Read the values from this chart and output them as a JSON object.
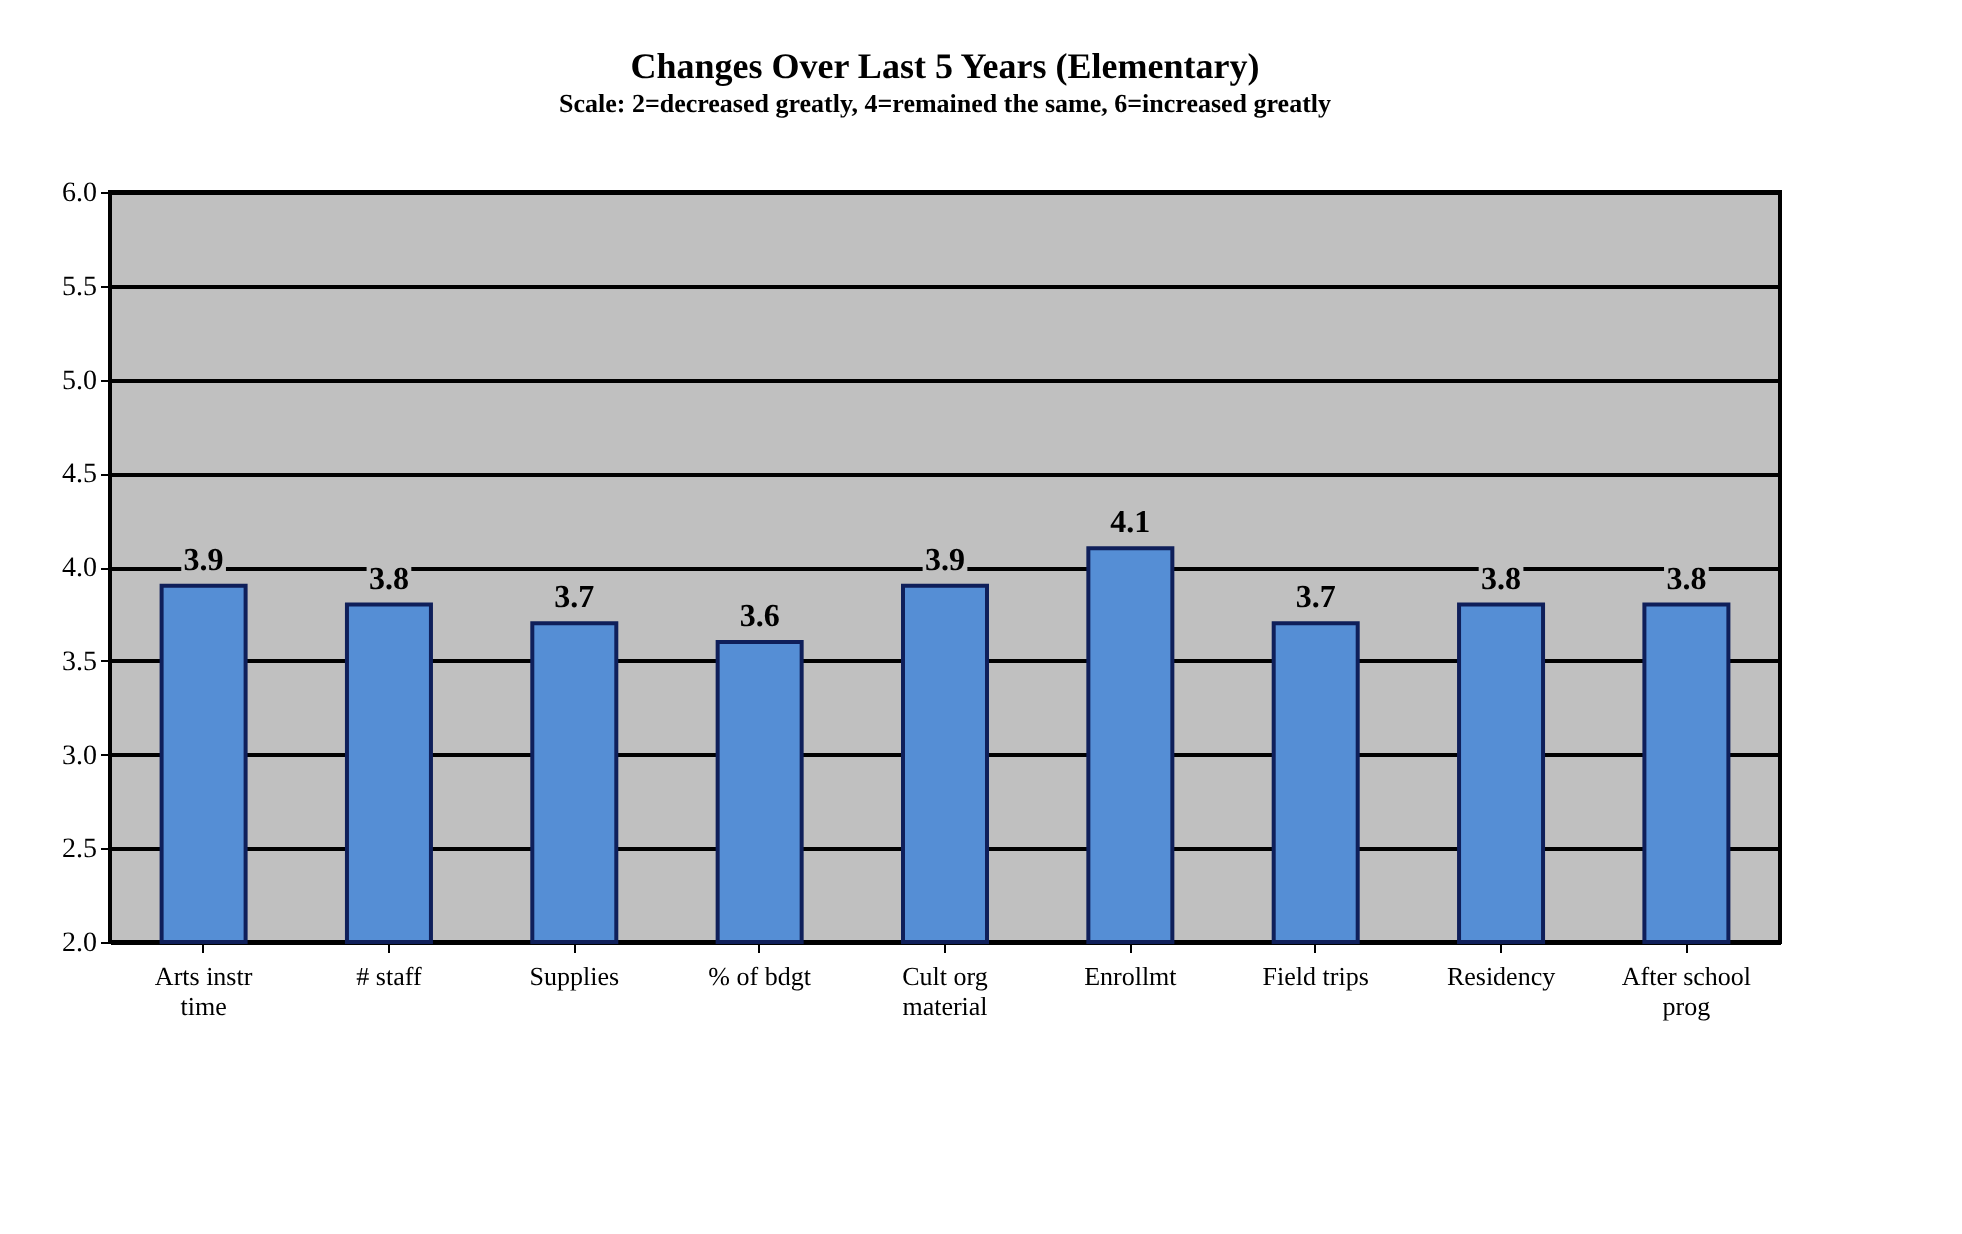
{
  "chart_data": {
    "type": "bar",
    "title": "Changes Over Last 5 Years (Elementary)",
    "subtitle": "Scale: 2=decreased greatly, 4=remained the same, 6=increased greatly",
    "categories": [
      "Arts instr\ntime",
      "# staff",
      "Supplies",
      "% of bdgt",
      "Cult org\nmaterial",
      "Enrollmt",
      "Field trips",
      "Residency",
      "After school\nprog"
    ],
    "values": [
      3.9,
      3.8,
      3.7,
      3.6,
      3.9,
      4.1,
      3.7,
      3.8,
      3.8
    ],
    "color": "#558ed5",
    "data_labels": true,
    "ylim": [
      2.0,
      6.0
    ],
    "yticks": [
      {
        "value": 2,
        "label": "2.0"
      },
      {
        "value": 2.5,
        "label": "2.5"
      },
      {
        "value": 3,
        "label": "3.0"
      },
      {
        "value": 3.5,
        "label": "3.5"
      },
      {
        "value": 4,
        "label": "4.0"
      },
      {
        "value": 4.5,
        "label": "4.5"
      },
      {
        "value": 5,
        "label": "5.0"
      },
      {
        "value": 5.5,
        "label": "5.5"
      },
      {
        "value": 6,
        "label": "6.0"
      }
    ],
    "grid": "y"
  }
}
